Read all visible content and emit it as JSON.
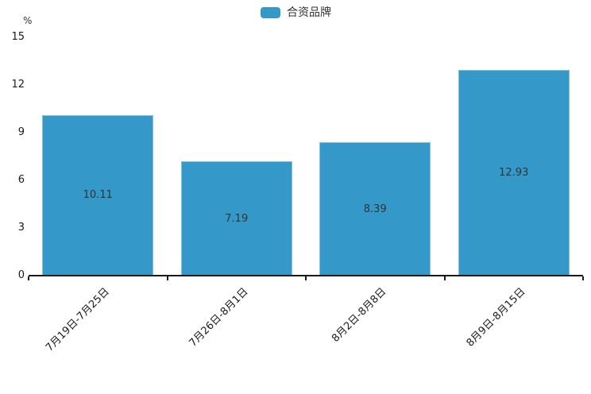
{
  "legend": {
    "label": "合资品牌"
  },
  "chart_data": {
    "type": "bar",
    "title": "",
    "categories": [
      "7月19日-7月25日",
      "7月26日-8月1日",
      "8月2日-8月8日",
      "8月9日-8月15日"
    ],
    "series": [
      {
        "name": "合资品牌",
        "values": [
          10.11,
          7.19,
          8.39,
          12.93
        ]
      }
    ],
    "value_labels": [
      "10.11",
      "7.19",
      "8.39",
      "12.93"
    ],
    "unit": "%",
    "yticks": [
      0,
      3,
      6,
      9,
      12,
      15
    ],
    "ylim": [
      0,
      15
    ],
    "xlabel": "",
    "ylabel": "%",
    "grid": false,
    "legend_position": "top-center",
    "x_tick_label_rotation_deg": 45,
    "colors": {
      "bar": "#3499c9",
      "axis": "#1a1a1a",
      "value_label": "#333333",
      "tick_label": "#1a1a1a"
    }
  }
}
